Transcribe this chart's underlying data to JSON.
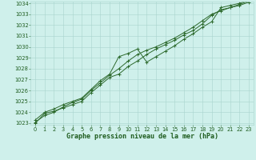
{
  "title": "Graphe pression niveau de la mer (hPa)",
  "x": [
    0,
    1,
    2,
    3,
    4,
    5,
    6,
    7,
    8,
    9,
    10,
    11,
    12,
    13,
    14,
    15,
    16,
    17,
    18,
    19,
    20,
    21,
    22,
    23
  ],
  "line1": [
    1023.0,
    1023.9,
    1024.1,
    1024.4,
    1024.7,
    1025.0,
    1025.8,
    1026.5,
    1027.2,
    1027.5,
    1028.2,
    1028.7,
    1029.3,
    1029.8,
    1030.2,
    1030.6,
    1031.1,
    1031.5,
    1032.1,
    1032.9,
    1033.4,
    1033.6,
    1033.8,
    1034.1
  ],
  "line2": [
    1023.3,
    1024.0,
    1024.3,
    1024.7,
    1025.0,
    1025.3,
    1026.1,
    1026.9,
    1027.5,
    1029.1,
    1029.4,
    1029.8,
    1028.6,
    1029.1,
    1029.6,
    1030.1,
    1030.7,
    1031.2,
    1031.8,
    1032.3,
    1033.6,
    1033.8,
    1034.0,
    1034.3
  ],
  "line3": [
    1023.1,
    1023.7,
    1024.0,
    1024.5,
    1024.9,
    1025.2,
    1026.0,
    1026.7,
    1027.4,
    1028.0,
    1028.7,
    1029.3,
    1029.7,
    1030.0,
    1030.4,
    1030.8,
    1031.3,
    1031.8,
    1032.4,
    1033.0,
    1033.3,
    1033.6,
    1033.9,
    1034.2
  ],
  "ylim_min": 1023,
  "ylim_max": 1034,
  "xlim_min": 0,
  "xlim_max": 23,
  "yticks": [
    1023,
    1024,
    1025,
    1026,
    1027,
    1028,
    1029,
    1030,
    1031,
    1032,
    1033,
    1034
  ],
  "xticks": [
    0,
    1,
    2,
    3,
    4,
    5,
    6,
    7,
    8,
    9,
    10,
    11,
    12,
    13,
    14,
    15,
    16,
    17,
    18,
    19,
    20,
    21,
    22,
    23
  ],
  "line_color": "#2d6a2d",
  "bg_color": "#cff0eb",
  "grid_color": "#a8d5ce",
  "text_color": "#1e5c1e",
  "marker": "+",
  "marker_size": 3.0,
  "line_width": 0.7,
  "xlabel_fontsize": 6.0,
  "tick_fontsize": 4.8
}
